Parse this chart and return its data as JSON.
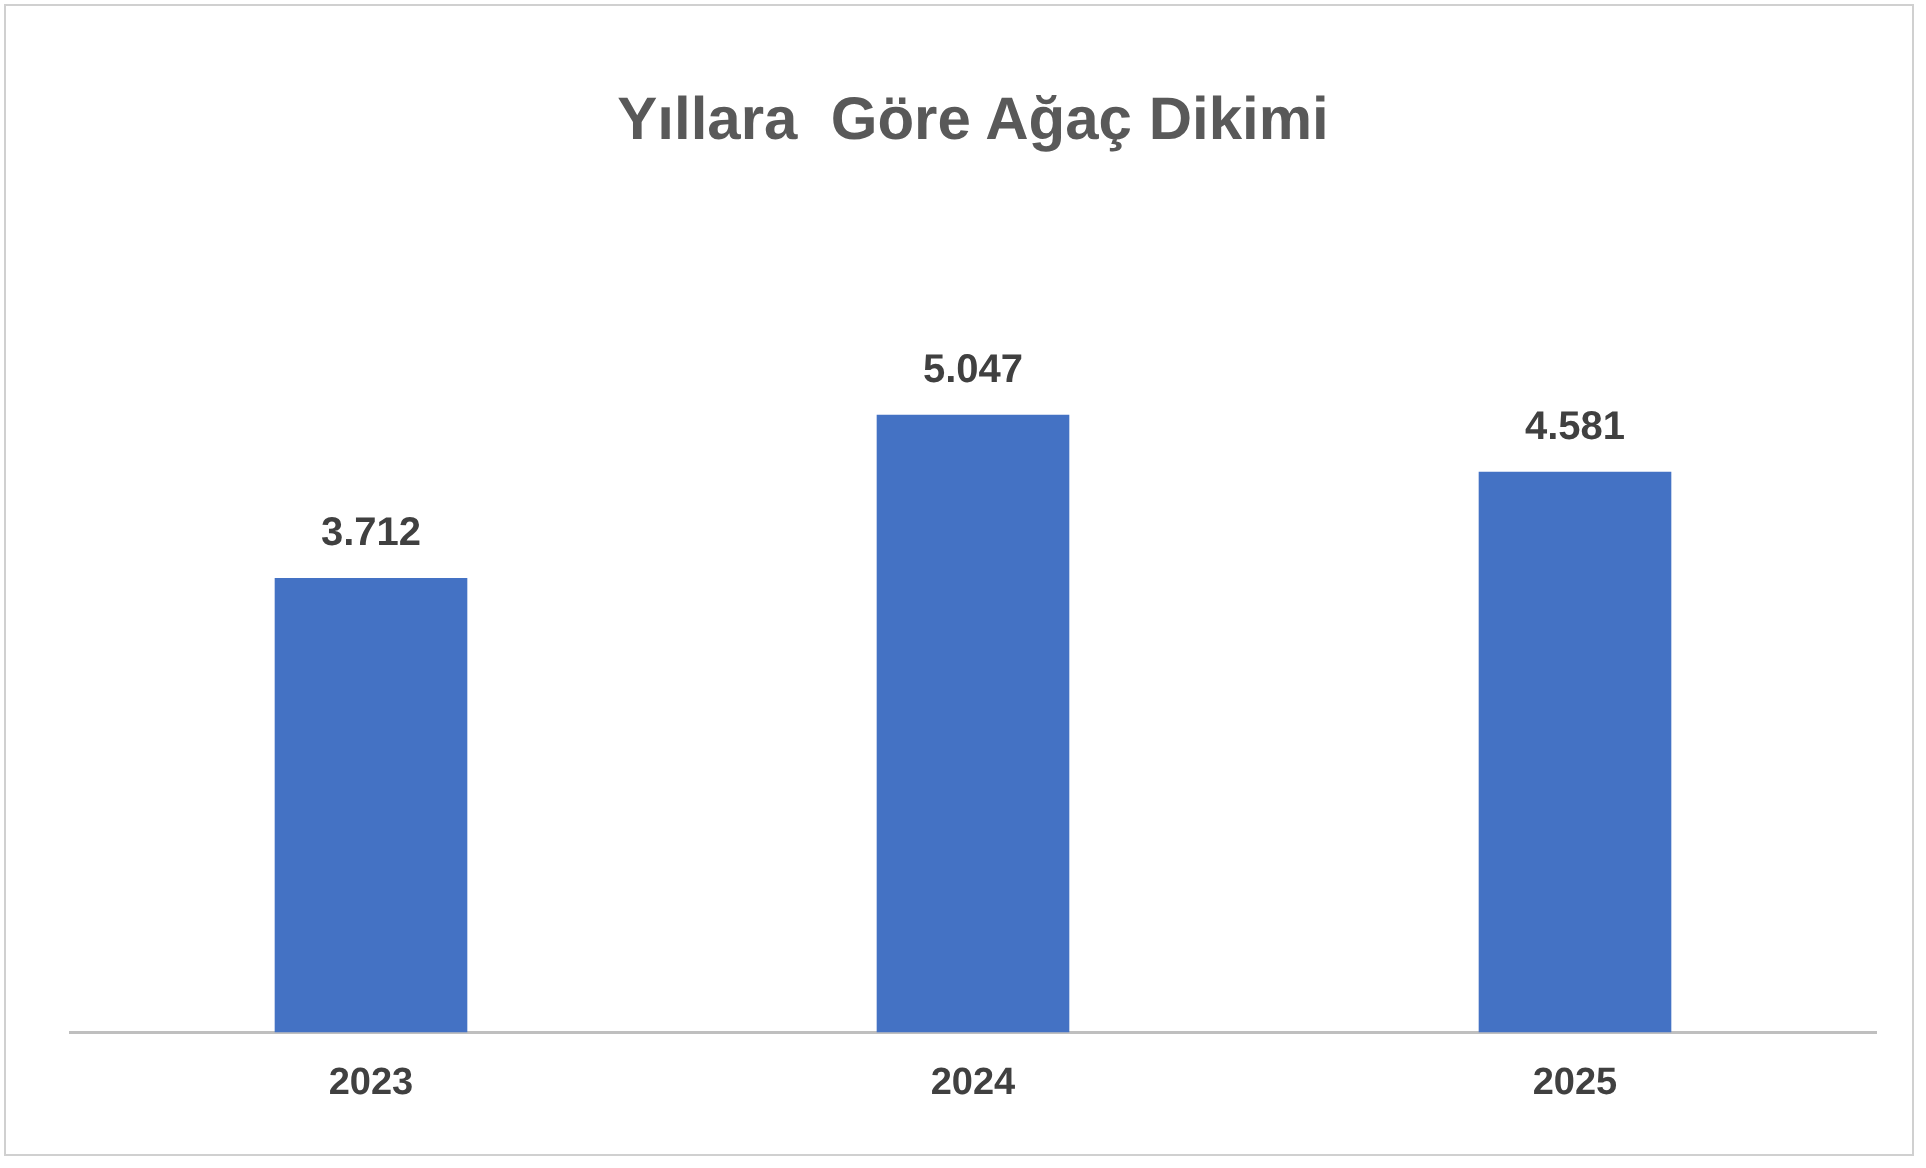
{
  "chart_data": {
    "type": "bar",
    "title": "Yıllara  Göre Ağaç Dikimi",
    "categories": [
      "2023",
      "2024",
      "2025"
    ],
    "values": [
      3712,
      5047,
      4581
    ],
    "value_labels": [
      "3.712",
      "5.047",
      "4.581"
    ],
    "color": "#4472c4",
    "grid": false,
    "legend": false
  }
}
